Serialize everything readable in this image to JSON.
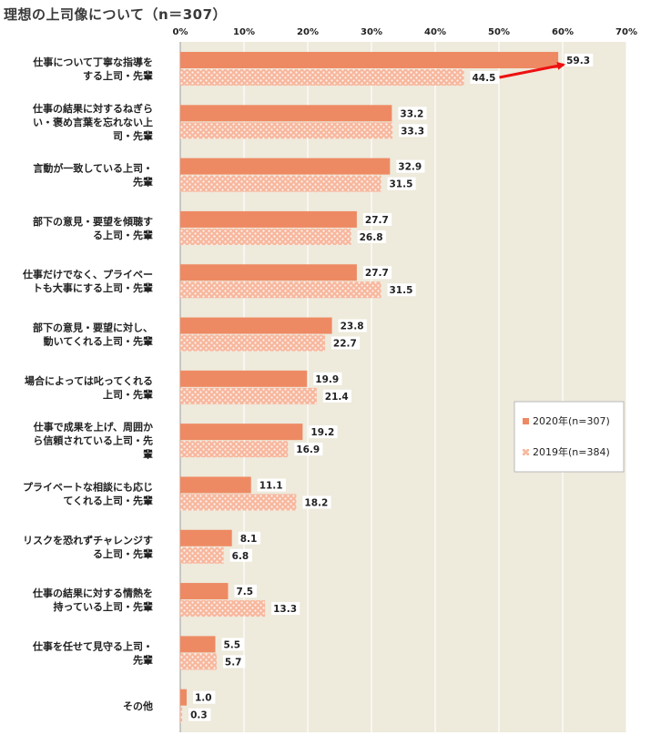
{
  "title": "理想の上司像について（n＝307）",
  "colors": {
    "series_2020": "#ee8a63",
    "series_2019": "#f7b79d",
    "plot_bg": "#eeeadc",
    "arrow": "#ee1111"
  },
  "chart_data": {
    "type": "bar",
    "orientation": "horizontal",
    "categories": [
      [
        "仕事について丁寧な指導を",
        "する上司・先輩"
      ],
      [
        "仕事の結果に対するねぎら",
        "い・褒め言葉を忘れない上",
        "司・先輩"
      ],
      [
        "言動が一致している上司・",
        "先輩"
      ],
      [
        "部下の意見・要望を傾聴す",
        "る上司・先輩"
      ],
      [
        "仕事だけでなく、プライベー",
        "トも大事にする上司・先輩"
      ],
      [
        "部下の意見・要望に対し、",
        "動いてくれる上司・先輩"
      ],
      [
        "場合によっては叱ってくれる",
        "上司・先輩"
      ],
      [
        "仕事で成果を上げ、周囲か",
        "ら信頼されている上司・先",
        "輩"
      ],
      [
        "プライベートな相談にも応じ",
        "てくれる上司・先輩"
      ],
      [
        "リスクを恐れずチャレンジす",
        "る上司・先輩"
      ],
      [
        "仕事の結果に対する情熱を",
        "持っている上司・先輩"
      ],
      [
        "仕事を任せて見守る上司・",
        "先輩"
      ],
      [
        "その他"
      ]
    ],
    "series": [
      {
        "name": "2020年(n=307)",
        "values": [
          59.3,
          33.2,
          32.9,
          27.7,
          27.7,
          23.8,
          19.9,
          19.2,
          11.1,
          8.1,
          7.5,
          5.5,
          1.0
        ]
      },
      {
        "name": "2019年(n=384)",
        "values": [
          44.5,
          33.3,
          31.5,
          26.8,
          31.5,
          22.7,
          21.4,
          16.9,
          18.2,
          6.8,
          13.3,
          5.7,
          0.3
        ]
      }
    ],
    "value_labels": [
      [
        "59.3",
        "33.2",
        "32.9",
        "27.7",
        "27.7",
        "23.8",
        "19.9",
        "19.2",
        "11.1",
        "8.1",
        "7.5",
        "5.5",
        "1.0"
      ],
      [
        "44.5",
        "33.3",
        "31.5",
        "26.8",
        "31.5",
        "22.7",
        "21.4",
        "16.9",
        "18.2",
        "6.8",
        "13.3",
        "5.7",
        "0.3"
      ]
    ],
    "xticks": [
      "0%",
      "10%",
      "20%",
      "30%",
      "40%",
      "50%",
      "60%",
      "70%"
    ],
    "xlim": [
      0,
      70
    ],
    "xlabel": "",
    "ylabel": "",
    "grid": true,
    "legend_position": "right",
    "annotation": "arrow from 2019 value (44.5) to 2020 value (59.3) for the first item"
  }
}
